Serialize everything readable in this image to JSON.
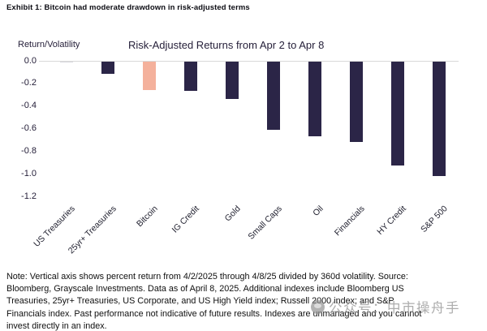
{
  "exhibit": {
    "title": "Exhibit 1: Bitcoin had moderate drawdown in risk-adjusted terms"
  },
  "chart_data": {
    "type": "bar",
    "title": "Risk-Adjusted Returns from Apr 2 to Apr 8",
    "ylabel": "Return/Volatility",
    "xlabel": "",
    "ylim": [
      -1.2,
      0.0
    ],
    "yticks": [
      0.0,
      -0.2,
      -0.4,
      -0.6,
      -0.8,
      -1.0,
      -1.2
    ],
    "ytick_labels": [
      "0.0",
      "-0.2",
      "-0.4",
      "-0.6",
      "-0.8",
      "-1.0",
      "-1.2"
    ],
    "categories": [
      "US Treasuries",
      "25yr+ Treasuries",
      "Bitcoin",
      "IG Credit",
      "Gold",
      "Small Caps",
      "Oil",
      "Financials",
      "HY Credit",
      "S&P 500"
    ],
    "values": [
      -0.01,
      -0.11,
      -0.25,
      -0.26,
      -0.33,
      -0.6,
      -0.66,
      -0.71,
      -0.92,
      -1.01
    ],
    "bar_colors": [
      "#d9d9de",
      "#2b2547",
      "#f4b19c",
      "#2b2547",
      "#2b2547",
      "#2b2547",
      "#2b2547",
      "#2b2547",
      "#2b2547",
      "#2b2547"
    ],
    "colors": {
      "default_bar": "#2b2547",
      "highlight_bar": "#f4b19c",
      "zero_line": "#d9d9d9"
    },
    "grid": "zero line only",
    "legend": "none",
    "x_label_rotation_deg": 45
  },
  "footnote": {
    "lines": [
      "Note: Vertical axis shows percent return from 4/2/2025 through 4/8/25 divided by 360d volatility. Source:",
      "Bloomberg, Grayscale Investments. Data as of April 8, 2025. Additional indexes include Bloomberg US",
      "Treasuries, 25yr+ Treasuries, US Corporate, and US High Yield index; Russell 2000 index; and S&P",
      "Financials index. Past performance not indicative of future results. Indexes are unmanaged and you cannot",
      "invest directly in an index."
    ]
  },
  "watermark": {
    "icon": "wechat-logo-icon",
    "text": "公众号：中市操舟手",
    "color": "#919191"
  }
}
